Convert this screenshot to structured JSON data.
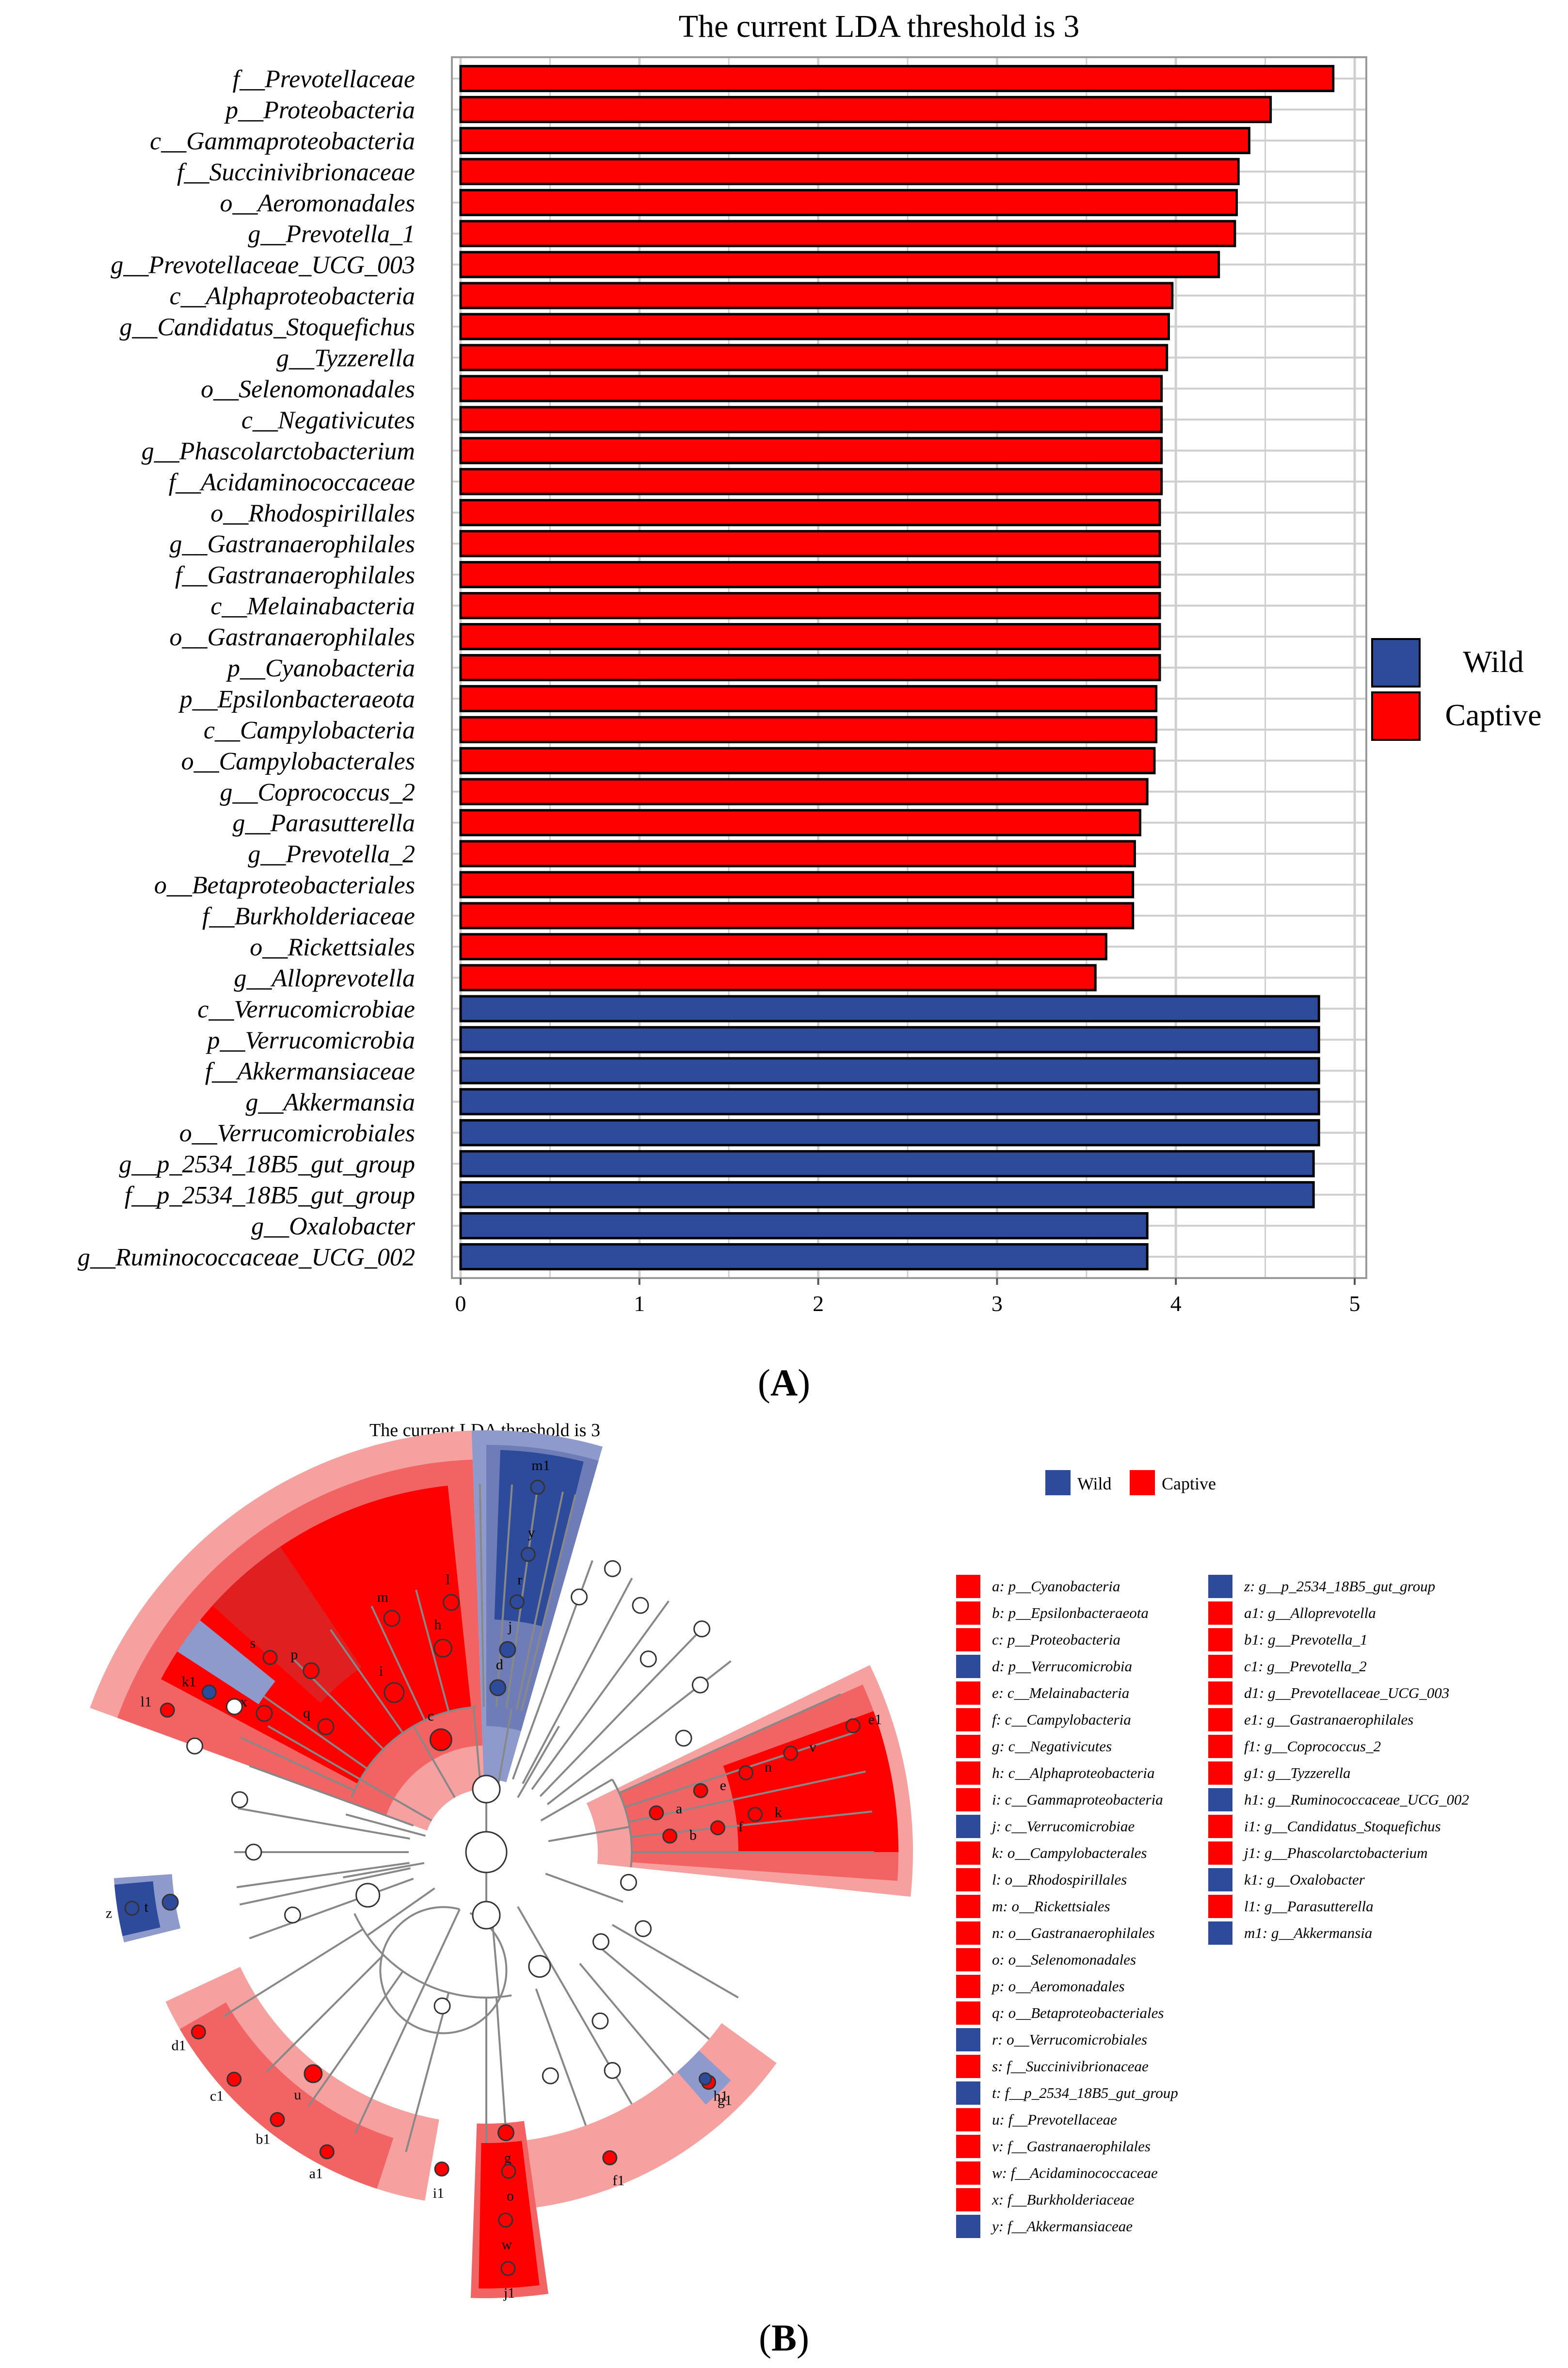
{
  "colors": {
    "wild": "#2E4A9A",
    "captive": "#FF0000",
    "wild_light": "#8E9ACB",
    "captive_light": "#F7A0A0",
    "captive_mid": "#F26464",
    "grid": "#CFCFCF",
    "panel_border": "#9A9A9A"
  },
  "panel_a": {
    "label_open": "(",
    "label_letter": "A",
    "label_close": ")"
  },
  "panel_b": {
    "label_open": "(",
    "label_letter": "B",
    "label_close": ")"
  },
  "chart_data": [
    {
      "type": "bar",
      "orientation": "horizontal",
      "title": "The current LDA threshold is 3",
      "xlabel": "",
      "ylabel": "",
      "xlim": [
        0,
        5
      ],
      "xticks": [
        "0",
        "1",
        "2",
        "3",
        "4",
        "5"
      ],
      "grid": true,
      "legend": {
        "placement": "right",
        "items": [
          {
            "name": "Wild",
            "group": "wild"
          },
          {
            "name": "Captive",
            "group": "captive"
          }
        ]
      },
      "categories": [
        "f__Prevotellaceae",
        "p__Proteobacteria",
        "c__Gammaproteobacteria",
        "f__Succinivibrionaceae",
        "o__Aeromonadales",
        "g__Prevotella_1",
        "g__Prevotellaceae_UCG_003",
        "c__Alphaproteobacteria",
        "g__Candidatus_Stoquefichus",
        "g__Tyzzerella",
        "o__Selenomonadales",
        "c__Negativicutes",
        "g__Phascolarctobacterium",
        "f__Acidaminococcaceae",
        "o__Rhodospirillales",
        "g__Gastranaerophilales",
        "f__Gastranaerophilales",
        "c__Melainabacteria",
        "o__Gastranaerophilales",
        "p__Cyanobacteria",
        "p__Epsilonbacteraeota",
        "c__Campylobacteria",
        "o__Campylobacterales",
        "g__Coprococcus_2",
        "g__Parasutterella",
        "g__Prevotella_2",
        "o__Betaproteobacteriales",
        "f__Burkholderiaceae",
        "o__Rickettsiales",
        "g__Alloprevotella",
        "c__Verrucomicrobiae",
        "p__Verrucomicrobia",
        "f__Akkermansiaceae",
        "g__Akkermansia",
        "o__Verrucomicrobiales",
        "g__p_2534_18B5_gut_group",
        "f__p_2534_18B5_gut_group",
        "g__Oxalobacter",
        "g__Ruminococcaceae_UCG_002"
      ],
      "values": [
        4.88,
        4.53,
        4.41,
        4.35,
        4.34,
        4.33,
        4.24,
        3.98,
        3.96,
        3.95,
        3.92,
        3.92,
        3.92,
        3.92,
        3.91,
        3.91,
        3.91,
        3.91,
        3.91,
        3.91,
        3.89,
        3.89,
        3.88,
        3.84,
        3.8,
        3.77,
        3.76,
        3.76,
        3.61,
        3.55,
        4.8,
        4.8,
        4.8,
        4.8,
        4.8,
        4.77,
        4.77,
        3.84,
        3.84
      ],
      "groups": [
        "captive",
        "captive",
        "captive",
        "captive",
        "captive",
        "captive",
        "captive",
        "captive",
        "captive",
        "captive",
        "captive",
        "captive",
        "captive",
        "captive",
        "captive",
        "captive",
        "captive",
        "captive",
        "captive",
        "captive",
        "captive",
        "captive",
        "captive",
        "captive",
        "captive",
        "captive",
        "captive",
        "captive",
        "captive",
        "captive",
        "wild",
        "wild",
        "wild",
        "wild",
        "wild",
        "wild",
        "wild",
        "wild",
        "wild"
      ]
    },
    {
      "type": "cladogram",
      "title": "The current LDA threshold is 3",
      "legend": {
        "placement": "top",
        "items": [
          {
            "name": "Wild",
            "group": "wild"
          },
          {
            "name": "Captive",
            "group": "captive"
          }
        ]
      },
      "key_column_1": [
        {
          "text": "a: p__Cyanobacteria",
          "group": "captive"
        },
        {
          "text": "b: p__Epsilonbacteraeota",
          "group": "captive"
        },
        {
          "text": "c: p__Proteobacteria",
          "group": "captive"
        },
        {
          "text": "d: p__Verrucomicrobia",
          "group": "wild"
        },
        {
          "text": "e: c__Melainabacteria",
          "group": "captive"
        },
        {
          "text": "f: c__Campylobacteria",
          "group": "captive"
        },
        {
          "text": "g: c__Negativicutes",
          "group": "captive"
        },
        {
          "text": "h: c__Alphaproteobacteria",
          "group": "captive"
        },
        {
          "text": "i: c__Gammaproteobacteria",
          "group": "captive"
        },
        {
          "text": "j: c__Verrucomicrobiae",
          "group": "wild"
        },
        {
          "text": "k: o__Campylobacterales",
          "group": "captive"
        },
        {
          "text": "l: o__Rhodospirillales",
          "group": "captive"
        },
        {
          "text": "m: o__Rickettsiales",
          "group": "captive"
        },
        {
          "text": "n: o__Gastranaerophilales",
          "group": "captive"
        },
        {
          "text": "o: o__Selenomonadales",
          "group": "captive"
        },
        {
          "text": "p: o__Aeromonadales",
          "group": "captive"
        },
        {
          "text": "q: o__Betaproteobacteriales",
          "group": "captive"
        },
        {
          "text": "r: o__Verrucomicrobiales",
          "group": "wild"
        },
        {
          "text": "s: f__Succinivibrionaceae",
          "group": "captive"
        },
        {
          "text": "t: f__p_2534_18B5_gut_group",
          "group": "wild"
        },
        {
          "text": "u: f__Prevotellaceae",
          "group": "captive"
        },
        {
          "text": "v: f__Gastranaerophilales",
          "group": "captive"
        },
        {
          "text": "w: f__Acidaminococcaceae",
          "group": "captive"
        },
        {
          "text": "x: f__Burkholderiaceae",
          "group": "captive"
        },
        {
          "text": "y: f__Akkermansiaceae",
          "group": "wild"
        }
      ],
      "key_column_2": [
        {
          "text": "z: g__p_2534_18B5_gut_group",
          "group": "wild"
        },
        {
          "text": "a1: g__Alloprevotella",
          "group": "captive"
        },
        {
          "text": "b1: g__Prevotella_1",
          "group": "captive"
        },
        {
          "text": "c1: g__Prevotella_2",
          "group": "captive"
        },
        {
          "text": "d1: g__Prevotellaceae_UCG_003",
          "group": "captive"
        },
        {
          "text": "e1: g__Gastranaerophilales",
          "group": "captive"
        },
        {
          "text": "f1: g__Coprococcus_2",
          "group": "captive"
        },
        {
          "text": "g1: g__Tyzzerella",
          "group": "captive"
        },
        {
          "text": "h1: g__Ruminococcaceae_UCG_002",
          "group": "wild"
        },
        {
          "text": "i1: g__Candidatus_Stoquefichus",
          "group": "captive"
        },
        {
          "text": "j1: g__Phascolarctobacterium",
          "group": "captive"
        },
        {
          "text": "k1: g__Oxalobacter",
          "group": "wild"
        },
        {
          "text": "l1: g__Parasutterella",
          "group": "captive"
        },
        {
          "text": "m1: g__Akkermansia",
          "group": "wild"
        }
      ],
      "node_labels": [
        "a",
        "b",
        "c",
        "d",
        "e",
        "f",
        "g",
        "h",
        "i",
        "j",
        "k",
        "l",
        "m",
        "n",
        "o",
        "p",
        "q",
        "r",
        "s",
        "t",
        "u",
        "v",
        "w",
        "x",
        "y",
        "z",
        "a1",
        "b1",
        "c1",
        "d1",
        "e1",
        "f1",
        "g1",
        "h1",
        "i1",
        "j1",
        "k1",
        "l1",
        "m1"
      ]
    }
  ]
}
